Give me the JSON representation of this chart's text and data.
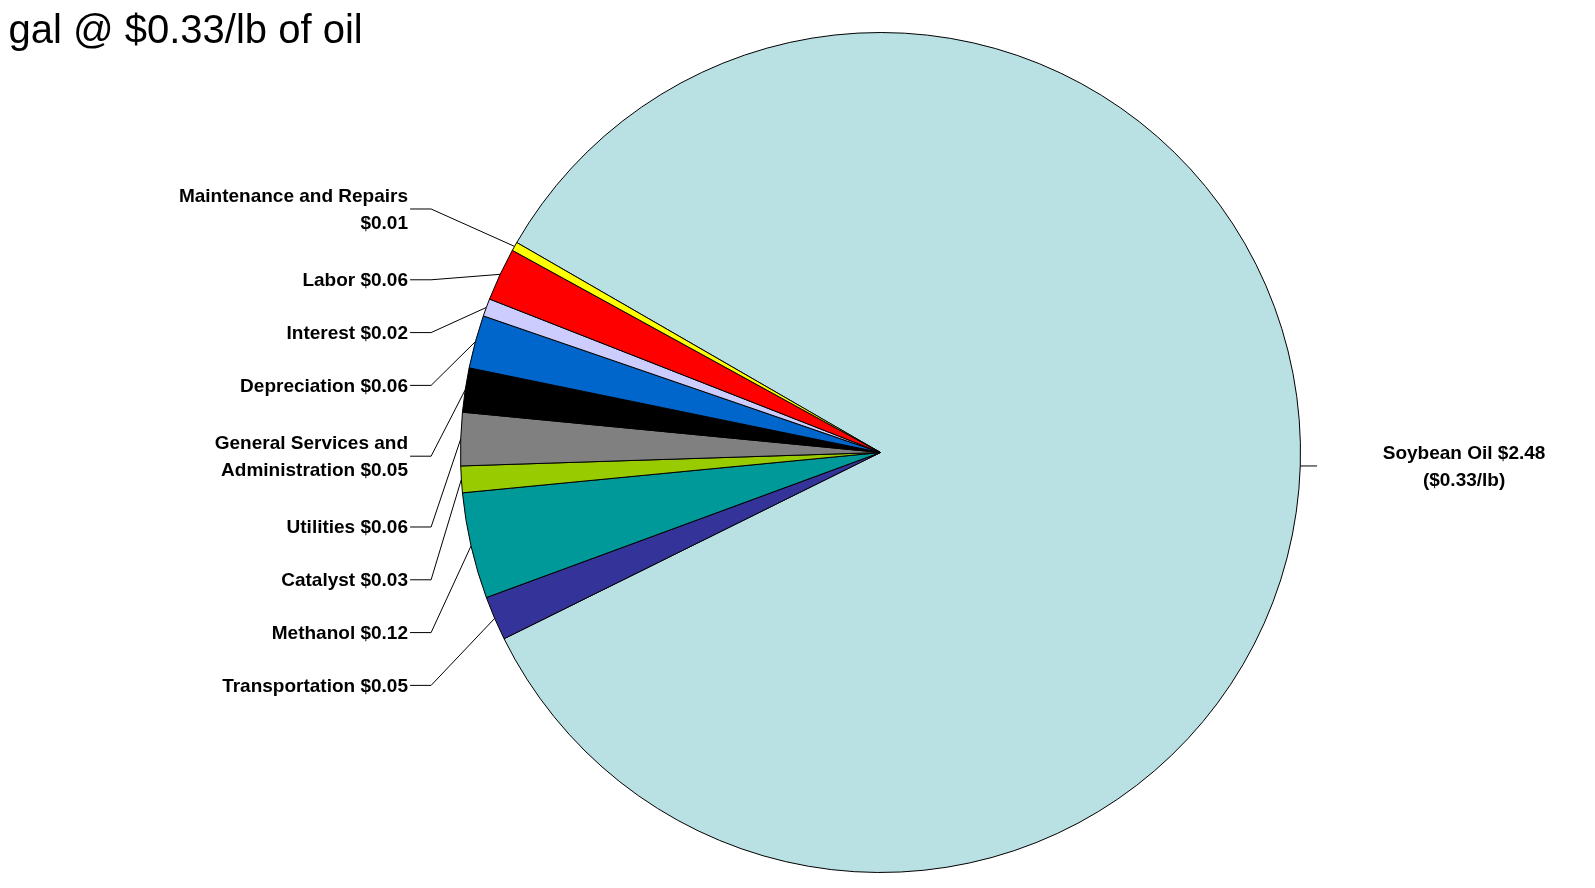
{
  "chart_data": {
    "type": "pie",
    "title": "gal @ $0.33/lb of oil",
    "categories": [
      "Soybean Oil",
      "Transportation",
      "Methanol",
      "Catalyst",
      "Utilities",
      "General Services and Administration",
      "Depreciation",
      "Interest",
      "Labor",
      "Maintenance and Repairs"
    ],
    "values": [
      2.48,
      0.05,
      0.12,
      0.03,
      0.06,
      0.05,
      0.06,
      0.02,
      0.06,
      0.01
    ],
    "value_labels": [
      "$2.48 ($0.33/lb)",
      "$0.05",
      "$0.12",
      "$0.03",
      "$0.06",
      "$0.05",
      "$0.06",
      "$0.02",
      "$0.06",
      "$0.01"
    ],
    "colors": [
      "#b9e0e3",
      "#333399",
      "#009999",
      "#99cc00",
      "#808080",
      "#000000",
      "#0066cc",
      "#ccccff",
      "#ff0000",
      "#ffff00"
    ]
  }
}
